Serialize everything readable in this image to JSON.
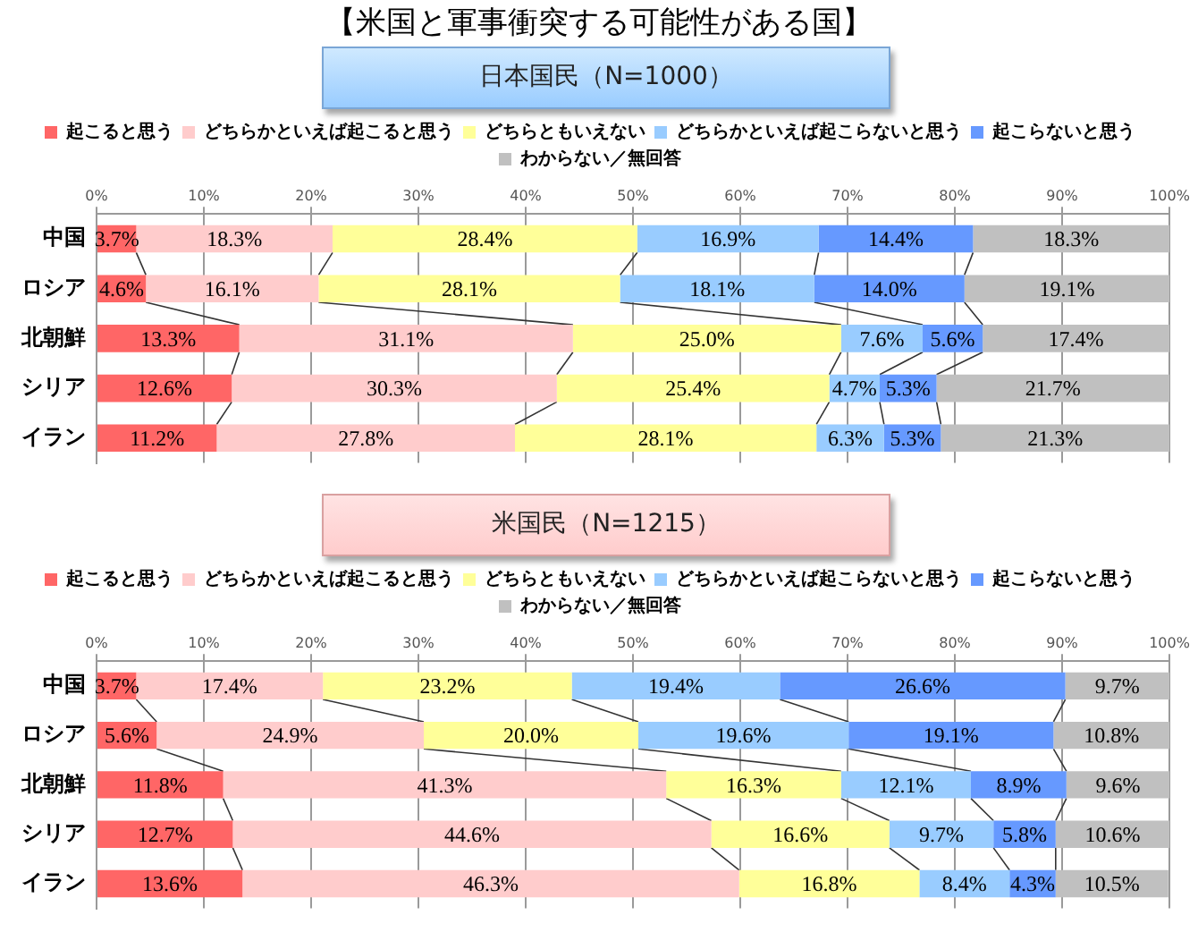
{
  "chart_data": [
    {
      "type": "bar",
      "orientation": "horizontal",
      "stacked": true,
      "title": "【米国と軍事衝突する可能性がある国】",
      "subtitle": "日本国民（N=1000）",
      "categories": [
        "中国",
        "ロシア",
        "北朝鮮",
        "シリア",
        "イラン"
      ],
      "series": [
        {
          "name": "起こると思う",
          "color": "#ff6666",
          "values": [
            3.7,
            4.6,
            13.3,
            12.6,
            11.2
          ],
          "value_labels": [
            "3.7%",
            "4.6%",
            "13.3%",
            "12.6%",
            "11.2%"
          ]
        },
        {
          "name": "どちらかといえば起こると思う",
          "color": "#ffcccc",
          "values": [
            18.3,
            16.1,
            31.1,
            30.3,
            27.8
          ],
          "value_labels": [
            "18.3%",
            "16.1%",
            "31.1%",
            "30.3%",
            "27.8%"
          ]
        },
        {
          "name": "どちらともいえない",
          "color": "#ffff99",
          "values": [
            28.4,
            28.1,
            25.0,
            25.4,
            28.1
          ],
          "value_labels": [
            "28.4%",
            "28.1%",
            "25.0%",
            "25.4%",
            "28.1%"
          ]
        },
        {
          "name": "どちらかといえば起こらないと思う",
          "color": "#99ccff",
          "values": [
            16.9,
            18.1,
            7.6,
            4.7,
            6.3
          ],
          "value_labels": [
            "16.9%",
            "18.1%",
            "7.6%",
            "4.7%",
            "6.3%"
          ]
        },
        {
          "name": "起こらないと思う",
          "color": "#6699ff",
          "values": [
            14.4,
            14.0,
            5.6,
            5.3,
            5.3
          ],
          "value_labels": [
            "14.4%",
            "14.0%",
            "5.6%",
            "5.3%",
            "5.3%"
          ]
        },
        {
          "name": "わからない／無回答",
          "color": "#c0c0c0",
          "values": [
            18.3,
            19.1,
            17.4,
            21.7,
            21.3
          ],
          "value_labels": [
            "18.3%",
            "19.1%",
            "17.4%",
            "21.7%",
            "21.3%"
          ]
        }
      ],
      "xlim": [
        0,
        100
      ],
      "xticks": [
        {
          "value": 0,
          "label": "0%"
        },
        {
          "value": 10,
          "label": "10%"
        },
        {
          "value": 20,
          "label": "20%"
        },
        {
          "value": 30,
          "label": "30%"
        },
        {
          "value": 40,
          "label": "40%"
        },
        {
          "value": 50,
          "label": "50%"
        },
        {
          "value": 60,
          "label": "60%"
        },
        {
          "value": 70,
          "label": "70%"
        },
        {
          "value": 80,
          "label": "80%"
        },
        {
          "value": 90,
          "label": "90%"
        },
        {
          "value": 100,
          "label": "100%"
        }
      ],
      "grid": "x",
      "legend": "top"
    },
    {
      "type": "bar",
      "orientation": "horizontal",
      "stacked": true,
      "subtitle": "米国民（N=1215）",
      "categories": [
        "中国",
        "ロシア",
        "北朝鮮",
        "シリア",
        "イラン"
      ],
      "series": [
        {
          "name": "起こると思う",
          "color": "#ff6666",
          "values": [
            3.7,
            5.6,
            11.8,
            12.7,
            13.6
          ],
          "value_labels": [
            "3.7%",
            "5.6%",
            "11.8%",
            "12.7%",
            "13.6%"
          ]
        },
        {
          "name": "どちらかといえば起こると思う",
          "color": "#ffcccc",
          "values": [
            17.4,
            24.9,
            41.3,
            44.6,
            46.3
          ],
          "value_labels": [
            "17.4%",
            "24.9%",
            "41.3%",
            "44.6%",
            "46.3%"
          ]
        },
        {
          "name": "どちらともいえない",
          "color": "#ffff99",
          "values": [
            23.2,
            20.0,
            16.3,
            16.6,
            16.8
          ],
          "value_labels": [
            "23.2%",
            "20.0%",
            "16.3%",
            "16.6%",
            "16.8%"
          ]
        },
        {
          "name": "どちらかといえば起こらないと思う",
          "color": "#99ccff",
          "values": [
            19.4,
            19.6,
            12.1,
            9.7,
            8.4
          ],
          "value_labels": [
            "19.4%",
            "19.6%",
            "12.1%",
            "9.7%",
            "8.4%"
          ]
        },
        {
          "name": "起こらないと思う",
          "color": "#6699ff",
          "values": [
            26.6,
            19.1,
            8.9,
            5.8,
            4.3
          ],
          "value_labels": [
            "26.6%",
            "19.1%",
            "8.9%",
            "5.8%",
            "4.3%"
          ]
        },
        {
          "name": "わからない／無回答",
          "color": "#c0c0c0",
          "values": [
            9.7,
            10.8,
            9.6,
            10.6,
            10.5
          ],
          "value_labels": [
            "9.7%",
            "10.8%",
            "9.6%",
            "10.6%",
            "10.5%"
          ]
        }
      ],
      "xlim": [
        0,
        100
      ],
      "xticks": [
        {
          "value": 0,
          "label": "0%"
        },
        {
          "value": 10,
          "label": "10%"
        },
        {
          "value": 20,
          "label": "20%"
        },
        {
          "value": 30,
          "label": "30%"
        },
        {
          "value": 40,
          "label": "40%"
        },
        {
          "value": 50,
          "label": "50%"
        },
        {
          "value": 60,
          "label": "60%"
        },
        {
          "value": 70,
          "label": "70%"
        },
        {
          "value": 80,
          "label": "80%"
        },
        {
          "value": 90,
          "label": "90%"
        },
        {
          "value": 100,
          "label": "100%"
        }
      ],
      "grid": "x",
      "legend": "top"
    }
  ]
}
